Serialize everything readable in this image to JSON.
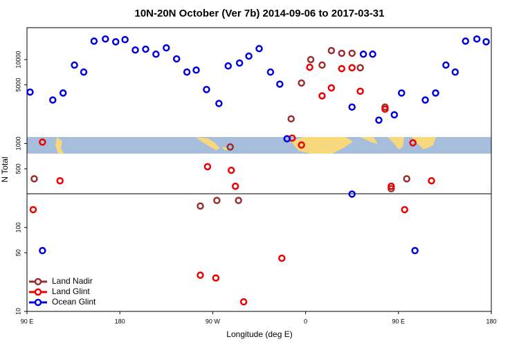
{
  "chart_data": {
    "type": "scatter",
    "title": "10N-20N October (Ver 7b)   2014-09-06 to 2017-03-31",
    "x_label": "Longitude (deg E)",
    "y_label": "N Total",
    "xlim": [
      -270,
      180
    ],
    "xticks": [
      {
        "value": -270,
        "label": "90 E"
      },
      {
        "value": -180,
        "label": "180"
      },
      {
        "value": -90,
        "label": "90 W"
      },
      0,
      {
        "value": 90,
        "label": "90 E"
      },
      {
        "value": 180,
        "label": "180"
      }
    ],
    "ylim": [
      10,
      24000
    ],
    "log_y": true,
    "yticks": [
      10,
      50,
      100,
      500,
      1000,
      5000,
      10000
    ],
    "legend": "bottom-left",
    "series": [
      {
        "name": "Land Nadir",
        "color": "#9b2d30",
        "x": [
          -263,
          -102,
          -86,
          -65,
          -73,
          -14,
          -4,
          5,
          16,
          25,
          35,
          45,
          53,
          77,
          83,
          98
        ],
        "values": [
          380,
          180,
          210,
          210,
          910,
          1970,
          5260,
          10000,
          8600,
          12800,
          11900,
          11900,
          8000,
          2720,
          290,
          380
        ]
      },
      {
        "name": "Land Glint",
        "color": "#ee0000",
        "x": [
          -255,
          -264,
          -238,
          -95,
          -72,
          -68,
          -102,
          -87,
          -60,
          -23,
          -13,
          -4,
          4,
          16,
          25,
          35,
          45,
          53,
          77,
          83,
          96,
          104,
          122
        ],
        "values": [
          1040,
          163,
          360,
          530,
          480,
          310,
          27,
          25,
          13,
          43,
          1160,
          960,
          8100,
          3700,
          4600,
          7800,
          8000,
          4200,
          2570,
          310,
          163,
          1020,
          360
        ]
      },
      {
        "name": "Ocean Glint",
        "color": "#0000dd",
        "x": [
          -267,
          -245,
          -235,
          -224,
          -215,
          -205,
          -194,
          -184,
          -175,
          -165,
          -155,
          -145,
          -135,
          -125,
          -115,
          -106,
          -96,
          -84,
          -75,
          -64,
          -55,
          -45,
          -34,
          -25,
          -18,
          45,
          45,
          56,
          65,
          71,
          86,
          93,
          106,
          116,
          126,
          136,
          145,
          155,
          166,
          175,
          -255
        ],
        "values": [
          4100,
          3300,
          4000,
          8600,
          7100,
          16600,
          17600,
          16300,
          17300,
          13000,
          13300,
          11600,
          13800,
          10200,
          7100,
          7500,
          4400,
          3000,
          8400,
          9100,
          11000,
          13500,
          7100,
          5100,
          1140,
          250,
          2720,
          11600,
          11600,
          1900,
          2200,
          4000,
          53,
          3300,
          4000,
          8600,
          7100,
          16600,
          17600,
          16300,
          53
        ]
      }
    ]
  }
}
